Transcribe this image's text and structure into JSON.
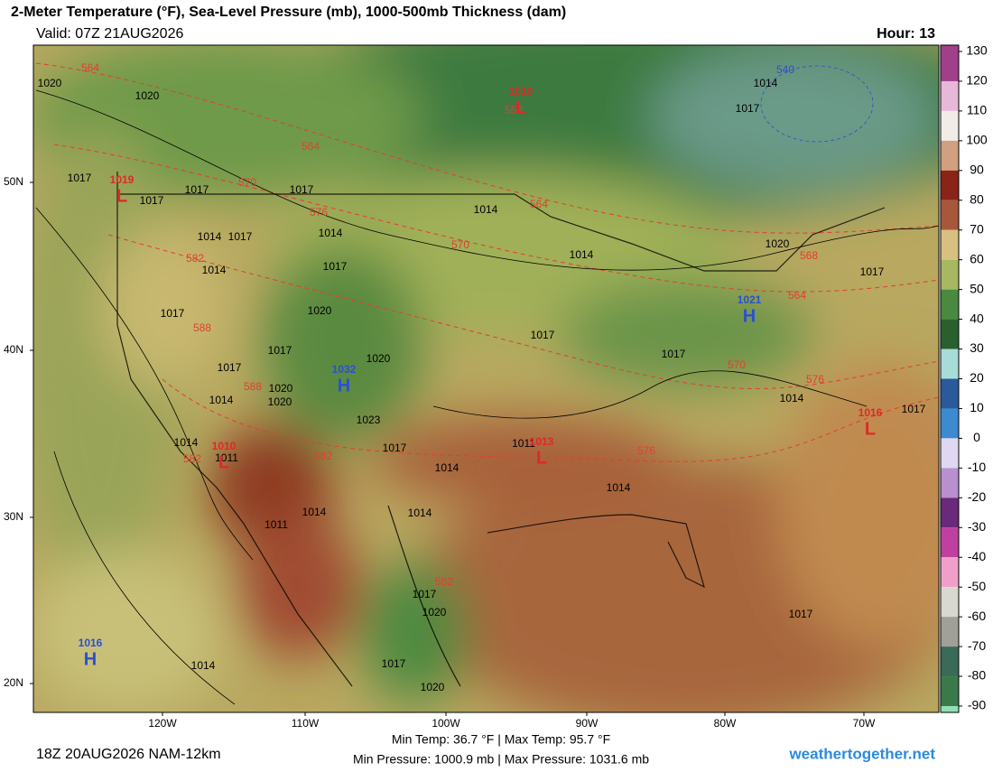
{
  "header": {
    "title": "2-Meter Temperature (°F), Sea-Level Pressure (mb), 1000-500mb Thickness (dam)",
    "valid": "Valid: 07Z 21AUG2026",
    "hour": "Hour: 13"
  },
  "colorbar": {
    "ticks": [
      130,
      120,
      110,
      100,
      90,
      80,
      70,
      60,
      50,
      40,
      30,
      20,
      10,
      0,
      -10,
      -20,
      -30,
      -40,
      -50,
      -60,
      -70,
      -80,
      -90
    ],
    "colors": [
      "#a0408a",
      "#e8b8d8",
      "#f2ece8",
      "#d0a080",
      "#8a2418",
      "#a8583a",
      "#d8c080",
      "#a8b860",
      "#4a8a40",
      "#2a6030",
      "#a8dcd8",
      "#2a5a9a",
      "#3c8ad0",
      "#e0d8f0",
      "#b890d0",
      "#6a2a7a",
      "#c040a0",
      "#f0a0c8",
      "#d8d8d0",
      "#a0a098",
      "#3a6a58",
      "#3a7a4a",
      "#90e0b0"
    ]
  },
  "axes": {
    "lat_labels": [
      "50N",
      "40N",
      "30N",
      "20N"
    ],
    "lon_labels": [
      "120W",
      "110W",
      "100W",
      "90W",
      "80W",
      "70W"
    ]
  },
  "isobar_labels": [
    "1020",
    "1020",
    "1014",
    "1017",
    "1017",
    "1017",
    "1017",
    "1017",
    "1014",
    "1014",
    "1014",
    "1017",
    "1017",
    "1014",
    "1020",
    "1017",
    "1017",
    "1020",
    "1017",
    "1014",
    "1017",
    "1017",
    "1017",
    "1020",
    "1020",
    "1020",
    "1014",
    "1014",
    "1023",
    "1017",
    "1014",
    "1011",
    "1014",
    "1011",
    "1014",
    "1014",
    "1011",
    "1014",
    "1017",
    "1020",
    "1017",
    "1020",
    "1014",
    "1017",
    "1017"
  ],
  "thickness_labels": [
    "564",
    "564",
    "570",
    "576",
    "582",
    "588",
    "588",
    "570",
    "564",
    "558",
    "568",
    "564",
    "570",
    "576",
    "576",
    "582",
    "582",
    "582",
    "540"
  ],
  "centers": [
    {
      "letter": "H",
      "pressure": "1016"
    },
    {
      "letter": "H",
      "pressure": "1032"
    },
    {
      "letter": "H",
      "pressure": "1021"
    },
    {
      "letter": "L",
      "pressure": "1013"
    },
    {
      "letter": "L",
      "pressure": "1016"
    },
    {
      "letter": "L",
      "pressure": "1010"
    },
    {
      "letter": "L",
      "pressure": "1019"
    },
    {
      "letter": "L",
      "pressure": "1010"
    }
  ],
  "footer": {
    "run": "18Z 20AUG2026 NAM-12km",
    "temps": "Min Temp:  36.7 °F | Max Temp:  95.7 °F",
    "pressures": "Min Pressure: 1000.9 mb | Max Pressure: 1031.6 mb",
    "site": "weathertogether.net"
  }
}
